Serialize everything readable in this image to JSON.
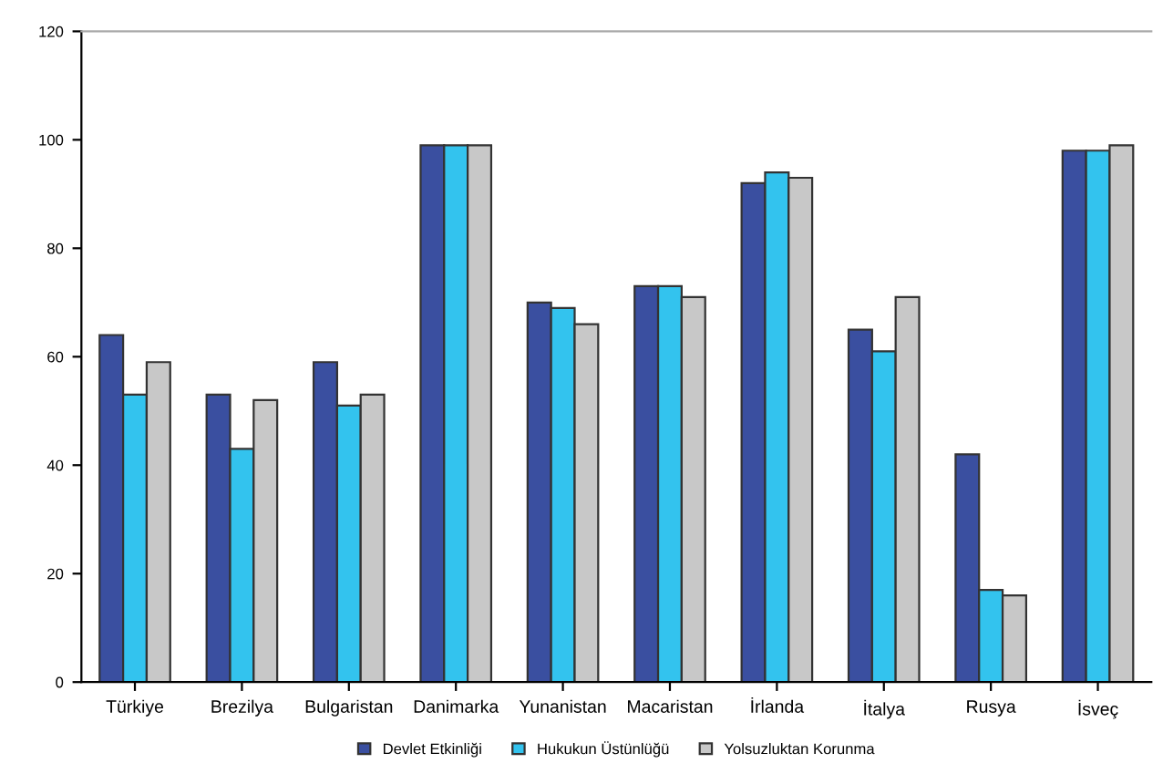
{
  "chart_data": {
    "type": "bar",
    "categories": [
      "Türkiye",
      "Brezilya",
      "Bulgaristan",
      "Danimarka",
      "Yunanistan",
      "Macaristan",
      "İrlanda",
      "İtalya",
      "Rusya",
      "İsveç"
    ],
    "series": [
      {
        "name": "Devlet Etkinliği",
        "color": "#3a4fa0",
        "values": [
          64,
          53,
          59,
          99,
          70,
          73,
          92,
          65,
          42,
          98
        ]
      },
      {
        "name": "Hukukun Üstünlüğü",
        "color": "#33c3ee",
        "values": [
          53,
          43,
          51,
          99,
          69,
          73,
          94,
          61,
          17,
          98
        ]
      },
      {
        "name": "Yolsuzluktan Korunma",
        "color": "#c8c8c8",
        "values": [
          59,
          52,
          53,
          99,
          66,
          71,
          93,
          71,
          16,
          99
        ]
      }
    ],
    "ylim": [
      0,
      120
    ],
    "yticks": [
      0,
      20,
      40,
      60,
      80,
      100,
      120
    ],
    "grid": false,
    "legend": "bottom"
  }
}
